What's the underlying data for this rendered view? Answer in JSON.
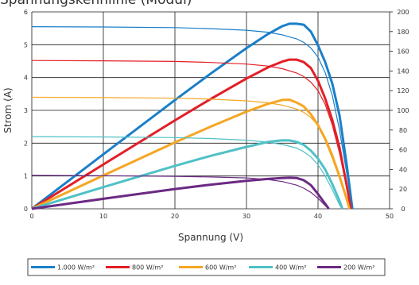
{
  "chart_data": {
    "type": "line",
    "title": "Spannungskennlinie (Modul)",
    "xlabel": "Spannung (V)",
    "ylabel": "Strom (A)",
    "y2label": "",
    "xlim": [
      0,
      50
    ],
    "ylim": [
      0,
      6
    ],
    "y2lim": [
      0,
      200
    ],
    "x_ticks": [
      0,
      10,
      20,
      30,
      40,
      50
    ],
    "y_ticks": [
      0,
      1,
      2,
      3,
      4,
      5,
      6
    ],
    "y2_ticks": [
      0,
      20,
      40,
      60,
      80,
      100,
      120,
      140,
      160,
      180,
      200
    ],
    "grid": true,
    "legend_position": "bottom",
    "series": [
      {
        "name": "1.000 W/m²",
        "color": "#1a7fc9",
        "current": {
          "x": [
            0,
            10,
            20,
            25,
            30,
            33,
            35,
            37,
            38,
            39,
            40,
            41,
            42,
            43,
            44,
            44.8
          ],
          "y": [
            5.55,
            5.54,
            5.52,
            5.49,
            5.44,
            5.38,
            5.3,
            5.18,
            5.07,
            4.9,
            4.62,
            4.15,
            3.45,
            2.4,
            1.1,
            0.0
          ]
        },
        "power": {
          "x": [
            0,
            10,
            20,
            25,
            30,
            33,
            35,
            36,
            37,
            38,
            39,
            40,
            41,
            42,
            43,
            44,
            44.8
          ],
          "y": [
            0,
            55.4,
            110.4,
            137.3,
            163.2,
            177.5,
            185.5,
            188.0,
            188.0,
            187.0,
            180.0,
            166.0,
            149.0,
            127.0,
            95.0,
            45.0,
            0
          ]
        }
      },
      {
        "name": "800 W/m²",
        "color": "#e31e26",
        "current": {
          "x": [
            0,
            10,
            20,
            25,
            30,
            33,
            35,
            37,
            38,
            39,
            40,
            41,
            42,
            43,
            44,
            44.6
          ],
          "y": [
            4.52,
            4.51,
            4.49,
            4.46,
            4.41,
            4.35,
            4.27,
            4.14,
            4.03,
            3.86,
            3.6,
            3.18,
            2.55,
            1.7,
            0.65,
            0.0
          ]
        },
        "power": {
          "x": [
            0,
            10,
            20,
            25,
            30,
            33,
            35,
            36,
            37,
            38,
            39,
            40,
            41,
            42,
            43,
            44,
            44.6
          ],
          "y": [
            0,
            45.1,
            89.8,
            111.5,
            132.3,
            143.6,
            149.5,
            151.5,
            151.5,
            149.0,
            143.0,
            130.0,
            112.0,
            90.0,
            62.0,
            24.0,
            0
          ]
        }
      },
      {
        "name": "600 W/m²",
        "color": "#f5a623",
        "current": {
          "x": [
            0,
            10,
            20,
            25,
            30,
            33,
            35,
            37,
            38,
            39,
            40,
            41,
            42,
            43,
            44,
            44.4
          ],
          "y": [
            3.4,
            3.39,
            3.37,
            3.34,
            3.29,
            3.23,
            3.16,
            3.04,
            2.94,
            2.78,
            2.54,
            2.18,
            1.68,
            1.05,
            0.3,
            0.0
          ]
        },
        "power": {
          "x": [
            0,
            10,
            20,
            25,
            30,
            33,
            35,
            36,
            37,
            38,
            39,
            40,
            41,
            42,
            43,
            44,
            44.4
          ],
          "y": [
            0,
            33.9,
            67.4,
            83.5,
            98.7,
            106.6,
            110.6,
            110.8,
            108.0,
            104.0,
            96.0,
            85.0,
            71.0,
            53.0,
            33.0,
            10.0,
            0
          ]
        }
      },
      {
        "name": "400 W/m²",
        "color": "#4fc1c6",
        "current": {
          "x": [
            0,
            10,
            20,
            25,
            30,
            33,
            35,
            37,
            38,
            39,
            40,
            41,
            42,
            43,
            43.4
          ],
          "y": [
            2.2,
            2.19,
            2.17,
            2.14,
            2.09,
            2.03,
            1.96,
            1.85,
            1.74,
            1.58,
            1.34,
            1.0,
            0.58,
            0.12,
            0.0
          ]
        },
        "power": {
          "x": [
            0,
            10,
            20,
            25,
            30,
            33,
            35,
            36,
            37,
            38,
            39,
            40,
            41,
            42,
            43,
            43.4
          ],
          "y": [
            0,
            22.0,
            43.6,
            53.8,
            62.9,
            67.9,
            69.5,
            69.4,
            68.0,
            65.0,
            59.0,
            51.0,
            40.0,
            25.0,
            8.0,
            0
          ]
        }
      },
      {
        "name": "200 W/m²",
        "color": "#6b2a84",
        "current": {
          "x": [
            0,
            10,
            20,
            25,
            30,
            33,
            35,
            37,
            38,
            39,
            40,
            41,
            41.5
          ],
          "y": [
            1.02,
            1.01,
            0.99,
            0.97,
            0.94,
            0.89,
            0.83,
            0.72,
            0.63,
            0.5,
            0.32,
            0.1,
            0.0
          ]
        },
        "power": {
          "x": [
            0,
            10,
            20,
            25,
            30,
            33,
            35,
            36,
            37,
            38,
            39,
            40,
            41,
            41.5
          ],
          "y": [
            0,
            10.2,
            20.1,
            24.5,
            28.4,
            30.3,
            31.3,
            31.5,
            31.3,
            29.0,
            24.0,
            15.0,
            5.0,
            0
          ]
        }
      }
    ]
  }
}
